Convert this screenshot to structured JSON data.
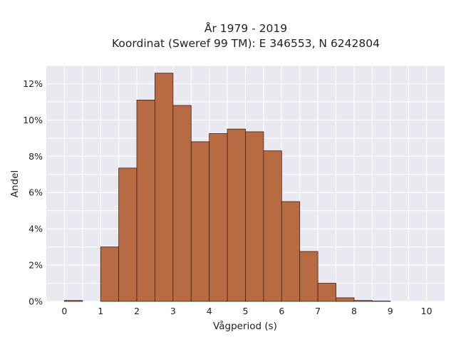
{
  "chart_data": {
    "type": "bar",
    "title_lines": [
      "År 1979 - 2019",
      "Koordinat (Sweref 99 TM): E 346553, N 6242804"
    ],
    "xlabel": "Vågperiod (s)",
    "ylabel": "Andel",
    "xlim": [
      -0.5,
      10.5
    ],
    "ylim": [
      0,
      0.13
    ],
    "x_ticks": [
      0,
      1,
      2,
      3,
      4,
      5,
      6,
      7,
      8,
      9,
      10
    ],
    "x_tick_labels": [
      "0",
      "1",
      "2",
      "3",
      "4",
      "5",
      "6",
      "7",
      "8",
      "9",
      "10"
    ],
    "y_ticks": [
      0,
      0.02,
      0.04,
      0.06,
      0.08,
      0.1,
      0.12
    ],
    "y_tick_labels": [
      "0%",
      "2%",
      "4%",
      "6%",
      "8%",
      "10%",
      "12%"
    ],
    "grid": true,
    "bin_width": 0.5,
    "bins": [
      {
        "start": 0.0,
        "value": 0.0005
      },
      {
        "start": 0.5,
        "value": 0.0
      },
      {
        "start": 1.0,
        "value": 0.03
      },
      {
        "start": 1.5,
        "value": 0.0735
      },
      {
        "start": 2.0,
        "value": 0.111
      },
      {
        "start": 2.5,
        "value": 0.1258
      },
      {
        "start": 3.0,
        "value": 0.108
      },
      {
        "start": 3.5,
        "value": 0.088
      },
      {
        "start": 4.0,
        "value": 0.0925
      },
      {
        "start": 4.5,
        "value": 0.095
      },
      {
        "start": 5.0,
        "value": 0.0935
      },
      {
        "start": 5.5,
        "value": 0.083
      },
      {
        "start": 6.0,
        "value": 0.055
      },
      {
        "start": 6.5,
        "value": 0.0275
      },
      {
        "start": 7.0,
        "value": 0.01
      },
      {
        "start": 7.5,
        "value": 0.002
      },
      {
        "start": 8.0,
        "value": 0.0005
      },
      {
        "start": 8.5,
        "value": 0.0002
      }
    ],
    "colors": {
      "bar_fill": "#b86a43",
      "bar_stroke": "#3d2318",
      "plot_background": "#e9e9f1",
      "grid": "#ffffff"
    }
  }
}
